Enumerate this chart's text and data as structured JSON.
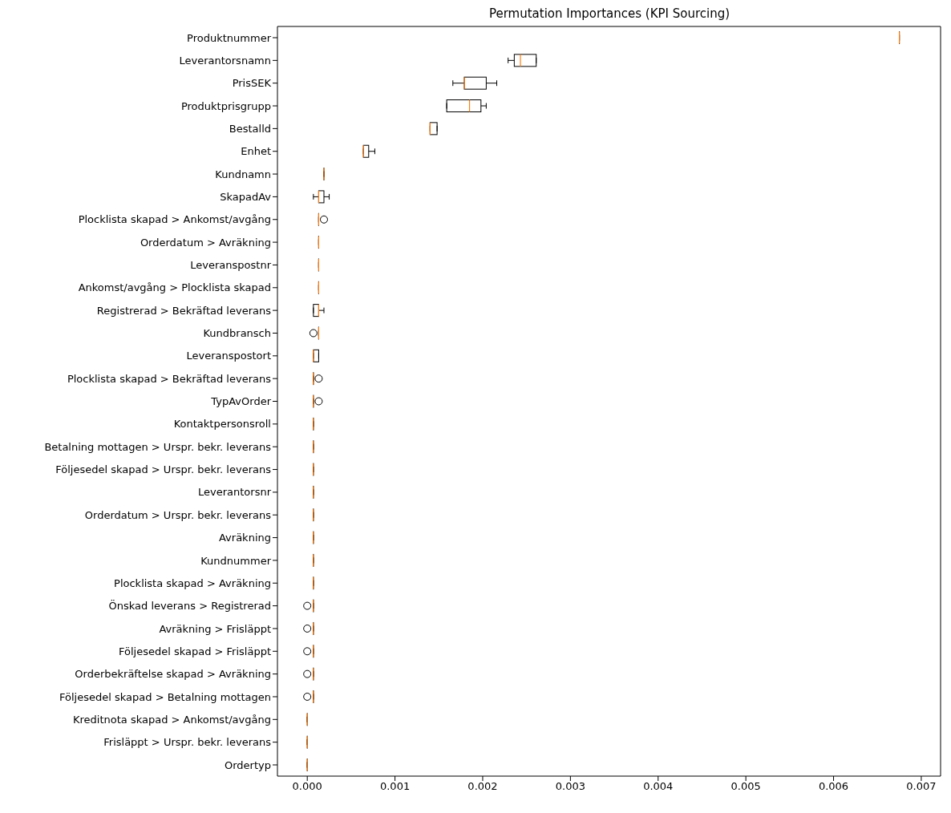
{
  "chart_data": {
    "type": "box",
    "title": "Permutation Importances (KPI Sourcing)",
    "orientation": "horizontal",
    "categories": [
      "Produktnummer",
      "Leverantorsnamn",
      "PrisSEK",
      "Produktprisgrupp",
      "Bestalld",
      "Enhet",
      "Kundnamn",
      "SkapadAv",
      "Plocklista skapad > Ankomst/avgång",
      "Orderdatum > Avräkning",
      "Leveranspostnr",
      "Ankomst/avgång > Plocklista skapad",
      "Registrerad > Bekräftad leverans",
      "Kundbransch",
      "Leveranspostort",
      "Plocklista skapad > Bekräftad leverans",
      "TypAvOrder",
      "Kontaktpersonsroll",
      "Betalning mottagen > Urspr. bekr. leverans",
      "Följesedel skapad > Urspr. bekr. leverans",
      "Leverantorsnr",
      "Orderdatum > Urspr. bekr. leverans",
      "Avräkning",
      "Kundnummer",
      "Plocklista skapad > Avräkning",
      "Önskad leverans > Registrerad",
      "Avräkning > Frisläppt",
      "Följesedel skapad > Frisläppt",
      "Orderbekräftelse skapad > Avräkning",
      "Följesedel skapad > Betalning mottagen",
      "Kreditnota skapad > Ankomst/avgång",
      "Frisläppt > Urspr. bekr. leverans",
      "Ordertyp"
    ],
    "boxes": [
      {
        "low": 0.00675,
        "q1": 0.00675,
        "median": 0.00675,
        "q3": 0.00675,
        "high": 0.00675
      },
      {
        "low": 0.00229,
        "q1": 0.00236,
        "median": 0.00243,
        "q3": 0.00261,
        "high": 0.00261
      },
      {
        "low": 0.00166,
        "q1": 0.00179,
        "median": 0.00179,
        "q3": 0.00204,
        "high": 0.00216
      },
      {
        "low": 0.00159,
        "q1": 0.00159,
        "median": 0.00185,
        "q3": 0.00198,
        "high": 0.00204
      },
      {
        "low": 0.0014,
        "q1": 0.0014,
        "median": 0.0014,
        "q3": 0.00148,
        "high": 0.00148
      },
      {
        "low": 0.00064,
        "q1": 0.00064,
        "median": 0.00064,
        "q3": 0.0007,
        "high": 0.00077
      },
      {
        "low": 0.00019,
        "q1": 0.00019,
        "median": 0.00019,
        "q3": 0.00019,
        "high": 0.00019
      },
      {
        "low": 7e-05,
        "q1": 0.00013,
        "median": 0.00013,
        "q3": 0.00019,
        "high": 0.00025
      },
      {
        "low": 0.00013,
        "q1": 0.00013,
        "median": 0.00013,
        "q3": 0.00013,
        "high": 0.00013,
        "outliers": [
          0.00019
        ]
      },
      {
        "low": 0.00013,
        "q1": 0.00013,
        "median": 0.00013,
        "q3": 0.00013,
        "high": 0.00013
      },
      {
        "low": 0.00013,
        "q1": 0.00013,
        "median": 0.00013,
        "q3": 0.00013,
        "high": 0.00013
      },
      {
        "low": 0.00013,
        "q1": 0.00013,
        "median": 0.00013,
        "q3": 0.00013,
        "high": 0.00013
      },
      {
        "low": 7e-05,
        "q1": 7e-05,
        "median": 0.00013,
        "q3": 0.00013,
        "high": 0.00019
      },
      {
        "low": 0.00013,
        "q1": 0.00013,
        "median": 0.00013,
        "q3": 0.00013,
        "high": 0.00013,
        "outliers": [
          7e-05
        ]
      },
      {
        "low": 7e-05,
        "q1": 7e-05,
        "median": 7e-05,
        "q3": 0.00013,
        "high": 0.00013
      },
      {
        "low": 7e-05,
        "q1": 7e-05,
        "median": 7e-05,
        "q3": 7e-05,
        "high": 7e-05,
        "outliers": [
          0.00013
        ]
      },
      {
        "low": 7e-05,
        "q1": 7e-05,
        "median": 7e-05,
        "q3": 7e-05,
        "high": 7e-05,
        "outliers": [
          0.00013
        ]
      },
      {
        "low": 7e-05,
        "q1": 7e-05,
        "median": 7e-05,
        "q3": 7e-05,
        "high": 7e-05
      },
      {
        "low": 7e-05,
        "q1": 7e-05,
        "median": 7e-05,
        "q3": 7e-05,
        "high": 7e-05
      },
      {
        "low": 7e-05,
        "q1": 7e-05,
        "median": 7e-05,
        "q3": 7e-05,
        "high": 7e-05
      },
      {
        "low": 7e-05,
        "q1": 7e-05,
        "median": 7e-05,
        "q3": 7e-05,
        "high": 7e-05
      },
      {
        "low": 7e-05,
        "q1": 7e-05,
        "median": 7e-05,
        "q3": 7e-05,
        "high": 7e-05
      },
      {
        "low": 7e-05,
        "q1": 7e-05,
        "median": 7e-05,
        "q3": 7e-05,
        "high": 7e-05
      },
      {
        "low": 7e-05,
        "q1": 7e-05,
        "median": 7e-05,
        "q3": 7e-05,
        "high": 7e-05
      },
      {
        "low": 7e-05,
        "q1": 7e-05,
        "median": 7e-05,
        "q3": 7e-05,
        "high": 7e-05
      },
      {
        "low": 7e-05,
        "q1": 7e-05,
        "median": 7e-05,
        "q3": 7e-05,
        "high": 7e-05,
        "outliers": [
          0.0
        ]
      },
      {
        "low": 7e-05,
        "q1": 7e-05,
        "median": 7e-05,
        "q3": 7e-05,
        "high": 7e-05,
        "outliers": [
          0.0
        ]
      },
      {
        "low": 7e-05,
        "q1": 7e-05,
        "median": 7e-05,
        "q3": 7e-05,
        "high": 7e-05,
        "outliers": [
          0.0
        ]
      },
      {
        "low": 7e-05,
        "q1": 7e-05,
        "median": 7e-05,
        "q3": 7e-05,
        "high": 7e-05,
        "outliers": [
          0.0
        ]
      },
      {
        "low": 7e-05,
        "q1": 7e-05,
        "median": 7e-05,
        "q3": 7e-05,
        "high": 7e-05,
        "outliers": [
          0.0
        ]
      },
      {
        "low": 0.0,
        "q1": 0.0,
        "median": 0.0,
        "q3": 0.0,
        "high": 0.0
      },
      {
        "low": 0.0,
        "q1": 0.0,
        "median": 0.0,
        "q3": 0.0,
        "high": 0.0
      },
      {
        "low": 0.0,
        "q1": 0.0,
        "median": 0.0,
        "q3": 0.0,
        "high": 0.0
      }
    ],
    "xlim": [
      -0.00034,
      0.00722
    ],
    "xticks": [
      {
        "value": 0,
        "label": "0.000"
      },
      {
        "value": 0.001,
        "label": "0.001"
      },
      {
        "value": 0.002,
        "label": "0.002"
      },
      {
        "value": 0.003,
        "label": "0.003"
      },
      {
        "value": 0.004,
        "label": "0.004"
      },
      {
        "value": 0.005,
        "label": "0.005"
      },
      {
        "value": 0.006,
        "label": "0.006"
      },
      {
        "value": 0.007,
        "label": "0.007"
      }
    ]
  }
}
